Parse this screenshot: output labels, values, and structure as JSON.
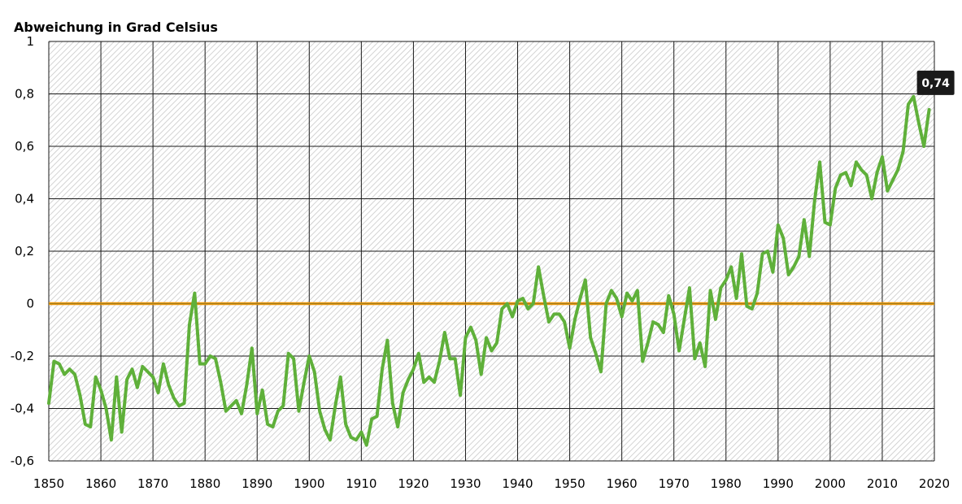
{
  "chart_data": {
    "type": "line",
    "title": "",
    "ylabel": "Abweichung in Grad Celsius",
    "xlabel": "",
    "xlim": [
      1850,
      2020
    ],
    "ylim": [
      -0.6,
      1
    ],
    "x_ticks": [
      "1850",
      "1860",
      "1870",
      "1880",
      "1890",
      "1900",
      "1910",
      "1920",
      "1930",
      "1940",
      "1950",
      "1960",
      "1970",
      "1980",
      "1990",
      "2000",
      "2010",
      "2020"
    ],
    "y_ticks": [
      "-0,6",
      "-0,4",
      "-0,2",
      "0",
      "0,2",
      "0,4",
      "0,6",
      "0,8",
      "1"
    ],
    "grid": true,
    "reference_line": 0,
    "colors": {
      "series": "#5fb03a",
      "reference": "#e8950c",
      "background_hatch": "#c8c8c8"
    },
    "callout": {
      "x": 2019,
      "y": 0.74,
      "label": "0,74"
    },
    "series": [
      {
        "x": [
          1850,
          1851,
          1852,
          1853,
          1854,
          1855,
          1856,
          1857,
          1858,
          1859,
          1860,
          1861,
          1862,
          1863,
          1864,
          1865,
          1866,
          1867,
          1868,
          1869,
          1870,
          1871,
          1872,
          1873,
          1874,
          1875,
          1876,
          1877,
          1878,
          1879,
          1880,
          1881,
          1882,
          1883,
          1884,
          1885,
          1886,
          1887,
          1888,
          1889,
          1890,
          1891,
          1892,
          1893,
          1894,
          1895,
          1896,
          1897,
          1898,
          1899,
          1900,
          1901,
          1902,
          1903,
          1904,
          1905,
          1906,
          1907,
          1908,
          1909,
          1910,
          1911,
          1912,
          1913,
          1914,
          1915,
          1916,
          1917,
          1918,
          1919,
          1920,
          1921,
          1922,
          1923,
          1924,
          1925,
          1926,
          1927,
          1928,
          1929,
          1930,
          1931,
          1932,
          1933,
          1934,
          1935,
          1936,
          1937,
          1938,
          1939,
          1940,
          1941,
          1942,
          1943,
          1944,
          1945,
          1946,
          1947,
          1948,
          1949,
          1950,
          1951,
          1952,
          1953,
          1954,
          1955,
          1956,
          1957,
          1958,
          1959,
          1960,
          1961,
          1962,
          1963,
          1964,
          1965,
          1966,
          1967,
          1968,
          1969,
          1970,
          1971,
          1972,
          1973,
          1974,
          1975,
          1976,
          1977,
          1978,
          1979,
          1980,
          1981,
          1982,
          1983,
          1984,
          1985,
          1986,
          1987,
          1988,
          1989,
          1990,
          1991,
          1992,
          1993,
          1994,
          1995,
          1996,
          1997,
          1998,
          1999,
          2000,
          2001,
          2002,
          2003,
          2004,
          2005,
          2006,
          2007,
          2008,
          2009,
          2010,
          2011,
          2012,
          2013,
          2014,
          2015,
          2016,
          2017,
          2018,
          2019
        ],
        "values": [
          -0.38,
          -0.22,
          -0.23,
          -0.27,
          -0.25,
          -0.27,
          -0.35,
          -0.46,
          -0.47,
          -0.28,
          -0.33,
          -0.4,
          -0.52,
          -0.28,
          -0.49,
          -0.29,
          -0.25,
          -0.32,
          -0.24,
          -0.26,
          -0.28,
          -0.34,
          -0.23,
          -0.31,
          -0.36,
          -0.39,
          -0.38,
          -0.08,
          0.04,
          -0.23,
          -0.23,
          -0.2,
          -0.21,
          -0.3,
          -0.41,
          -0.39,
          -0.37,
          -0.42,
          -0.31,
          -0.17,
          -0.42,
          -0.33,
          -0.46,
          -0.47,
          -0.41,
          -0.39,
          -0.19,
          -0.21,
          -0.41,
          -0.3,
          -0.2,
          -0.26,
          -0.41,
          -0.48,
          -0.52,
          -0.39,
          -0.28,
          -0.46,
          -0.51,
          -0.52,
          -0.49,
          -0.54,
          -0.44,
          -0.43,
          -0.25,
          -0.14,
          -0.38,
          -0.47,
          -0.34,
          -0.29,
          -0.25,
          -0.19,
          -0.3,
          -0.28,
          -0.3,
          -0.22,
          -0.11,
          -0.21,
          -0.21,
          -0.35,
          -0.13,
          -0.09,
          -0.14,
          -0.27,
          -0.13,
          -0.18,
          -0.15,
          -0.02,
          0,
          -0.05,
          0.01,
          0.02,
          -0.02,
          0,
          0.14,
          0.03,
          -0.07,
          -0.04,
          -0.04,
          -0.07,
          -0.17,
          -0.06,
          0.02,
          0.09,
          -0.13,
          -0.19,
          -0.26,
          0,
          0.05,
          0.02,
          -0.05,
          0.04,
          0.01,
          0.05,
          -0.22,
          -0.15,
          -0.07,
          -0.08,
          -0.11,
          0.03,
          -0.04,
          -0.18,
          -0.06,
          0.06,
          -0.21,
          -0.15,
          -0.24,
          0.05,
          -0.06,
          0.06,
          0.09,
          0.14,
          0.02,
          0.19,
          -0.01,
          -0.02,
          0.04,
          0.19,
          0.2,
          0.12,
          0.3,
          0.25,
          0.11,
          0.14,
          0.18,
          0.32,
          0.18,
          0.39,
          0.54,
          0.31,
          0.3,
          0.44,
          0.49,
          0.5,
          0.45,
          0.54,
          0.51,
          0.49,
          0.4,
          0.5,
          0.56,
          0.43,
          0.47,
          0.51,
          0.58,
          0.76,
          0.79,
          0.69,
          0.6,
          0.74
        ]
      }
    ]
  }
}
